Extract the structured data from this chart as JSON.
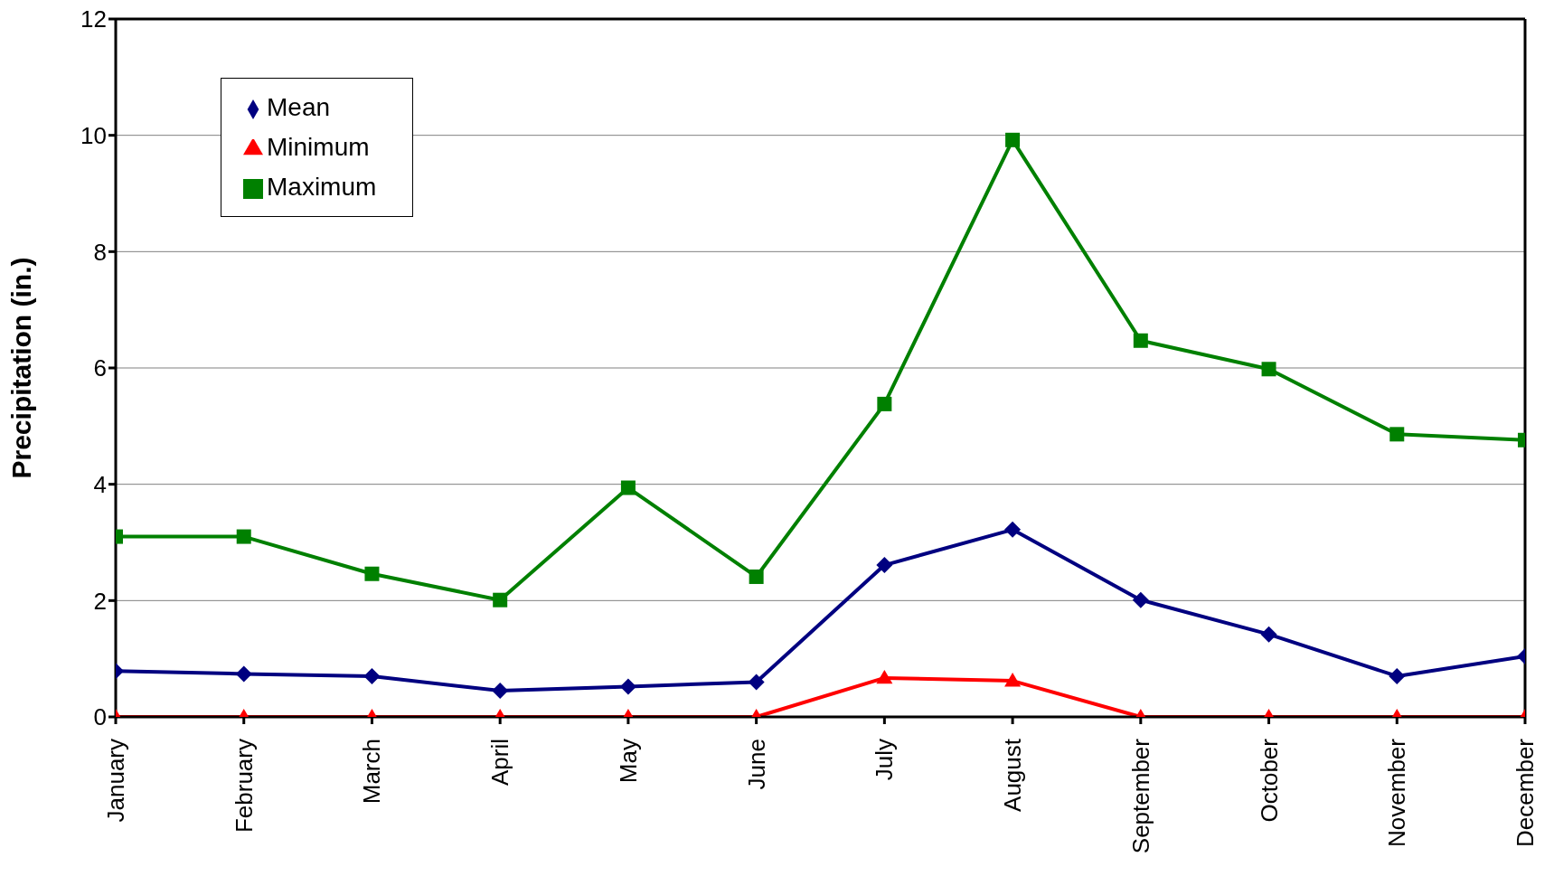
{
  "chart_data": {
    "type": "line",
    "ylabel": "Precipitation (in.)",
    "categories": [
      "January",
      "February",
      "March",
      "April",
      "May",
      "June",
      "July",
      "August",
      "September",
      "October",
      "November",
      "December"
    ],
    "series": [
      {
        "name": "Mean",
        "color": "#000080",
        "marker": "diamond",
        "values": [
          0.79,
          0.74,
          0.7,
          0.45,
          0.52,
          0.6,
          2.61,
          3.22,
          2.01,
          1.42,
          0.7,
          1.04
        ]
      },
      {
        "name": "Minimum",
        "color": "#ff0000",
        "marker": "triangle",
        "values": [
          0,
          0,
          0,
          0,
          0,
          0,
          0.67,
          0.62,
          0,
          0,
          0,
          0
        ]
      },
      {
        "name": "Maximum",
        "color": "#008000",
        "marker": "square",
        "values": [
          3.1,
          3.1,
          2.46,
          2.01,
          3.94,
          2.41,
          5.38,
          9.92,
          6.47,
          5.98,
          4.86,
          4.76
        ]
      }
    ],
    "ylim": [
      0,
      12
    ],
    "yticks": [
      0,
      2,
      4,
      6,
      8,
      10,
      12
    ],
    "grid": "y",
    "legend": "top left",
    "line_style": "solid"
  }
}
